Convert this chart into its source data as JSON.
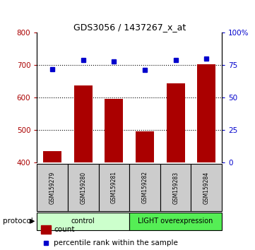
{
  "title": "GDS3056 / 1437267_x_at",
  "samples": [
    "GSM159279",
    "GSM159280",
    "GSM159281",
    "GSM159282",
    "GSM159283",
    "GSM159284"
  ],
  "counts": [
    435,
    638,
    595,
    495,
    643,
    703
  ],
  "percentile_ranks": [
    72,
    79,
    78,
    71,
    79,
    80
  ],
  "bar_color": "#aa0000",
  "dot_color": "#0000cc",
  "ylim_left": [
    400,
    800
  ],
  "ylim_right": [
    0,
    100
  ],
  "yticks_left": [
    400,
    500,
    600,
    700,
    800
  ],
  "yticks_right": [
    0,
    25,
    50,
    75,
    100
  ],
  "ytick_labels_right": [
    "0",
    "25",
    "50",
    "75",
    "100%"
  ],
  "grid_values": [
    500,
    600,
    700
  ],
  "groups": [
    {
      "label": "control",
      "start": 0,
      "end": 3,
      "color": "#ccffcc"
    },
    {
      "label": "LIGHT overexpression",
      "start": 3,
      "end": 6,
      "color": "#55ee55"
    }
  ],
  "protocol_label": "protocol",
  "legend_items": [
    {
      "color": "#aa0000",
      "label": "count"
    },
    {
      "color": "#0000cc",
      "label": "percentile rank within the sample"
    }
  ],
  "bg_color": "#ffffff",
  "sample_box_color": "#cccccc",
  "bar_width": 0.6,
  "title_fontsize": 9
}
